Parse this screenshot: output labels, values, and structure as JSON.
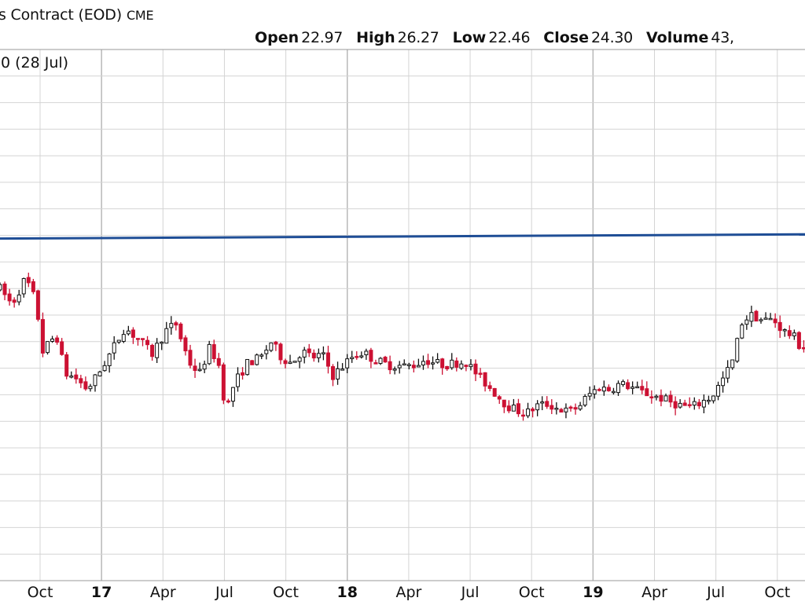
{
  "header": {
    "title": "s Contract (EOD)",
    "exchange": "CME"
  },
  "ohlc": {
    "open_label": "Open",
    "open_value": "22.97",
    "high_label": "High",
    "high_value": "26.27",
    "low_label": "Low",
    "low_value": "22.46",
    "close_label": "Close",
    "close_value": "24.30",
    "volume_label": "Volume",
    "volume_value": "43,"
  },
  "annotation": "0 (28 Jul)",
  "colors": {
    "up": "#111111",
    "down": "#cc1133",
    "ma": "#1f4e96",
    "grid": "#d4d4d4",
    "major_grid": "#b8b8b8",
    "frame": "#9a9a9a"
  },
  "chart_data": {
    "type": "candlestick",
    "x_ticks": [
      {
        "label": "Oct",
        "bold": false
      },
      {
        "label": "17",
        "bold": true
      },
      {
        "label": "Apr",
        "bold": false
      },
      {
        "label": "Jul",
        "bold": false
      },
      {
        "label": "Oct",
        "bold": false
      },
      {
        "label": "18",
        "bold": true
      },
      {
        "label": "Apr",
        "bold": false
      },
      {
        "label": "Jul",
        "bold": false
      },
      {
        "label": "Oct",
        "bold": false
      },
      {
        "label": "19",
        "bold": true
      },
      {
        "label": "Apr",
        "bold": false
      },
      {
        "label": "Jul",
        "bold": false
      },
      {
        "label": "Oct",
        "bold": false
      }
    ],
    "x_range": [
      "2016-08",
      "2019-11"
    ],
    "y_range": [
      0,
      50
    ],
    "y_axis_labels_visible": false,
    "grid": true,
    "moving_average": {
      "start": 32.2,
      "end": 32.6
    },
    "close_path": [
      [
        "2016-08-01",
        27.6
      ],
      [
        "2016-08-20",
        26.0
      ],
      [
        "2016-09-10",
        28.5
      ],
      [
        "2016-09-25",
        26.3
      ],
      [
        "2016-10-05",
        21.6
      ],
      [
        "2016-10-25",
        23.2
      ],
      [
        "2016-11-08",
        19.5
      ],
      [
        "2016-11-25",
        19.0
      ],
      [
        "2016-12-10",
        18.0
      ],
      [
        "2016-12-25",
        19.3
      ],
      [
        "2017-01-15",
        21.5
      ],
      [
        "2017-02-05",
        23.8
      ],
      [
        "2017-02-28",
        22.6
      ],
      [
        "2017-03-15",
        21.3
      ],
      [
        "2017-04-05",
        23.5
      ],
      [
        "2017-04-20",
        24.2
      ],
      [
        "2017-05-10",
        20.5
      ],
      [
        "2017-05-25",
        19.5
      ],
      [
        "2017-06-10",
        22.0
      ],
      [
        "2017-06-25",
        20.0
      ],
      [
        "2017-07-03",
        15.8
      ],
      [
        "2017-07-15",
        18.5
      ],
      [
        "2017-08-05",
        20.5
      ],
      [
        "2017-08-25",
        21.0
      ],
      [
        "2017-09-10",
        22.5
      ],
      [
        "2017-09-25",
        21.0
      ],
      [
        "2017-10-10",
        20.5
      ],
      [
        "2017-10-25",
        21.6
      ],
      [
        "2017-11-10",
        21.0
      ],
      [
        "2017-11-25",
        21.3
      ],
      [
        "2017-12-10",
        19.3
      ],
      [
        "2017-12-25",
        20.2
      ],
      [
        "2018-01-10",
        21.2
      ],
      [
        "2018-01-25",
        21.5
      ],
      [
        "2018-02-10",
        20.8
      ],
      [
        "2018-03-01",
        20.3
      ],
      [
        "2018-03-25",
        20.2
      ],
      [
        "2018-04-10",
        20.3
      ],
      [
        "2018-04-25",
        20.8
      ],
      [
        "2018-05-10",
        20.5
      ],
      [
        "2018-05-25",
        20.3
      ],
      [
        "2018-06-10",
        20.5
      ],
      [
        "2018-06-25",
        20.6
      ],
      [
        "2018-07-10",
        19.5
      ],
      [
        "2018-07-25",
        18.5
      ],
      [
        "2018-08-10",
        17.5
      ],
      [
        "2018-08-25",
        16.5
      ],
      [
        "2018-09-10",
        16.0
      ],
      [
        "2018-09-25",
        15.8
      ],
      [
        "2018-10-10",
        16.5
      ],
      [
        "2018-10-25",
        16.6
      ],
      [
        "2018-11-10",
        16.2
      ],
      [
        "2018-11-25",
        15.9
      ],
      [
        "2018-12-10",
        16.4
      ],
      [
        "2018-12-25",
        17.5
      ],
      [
        "2019-01-10",
        18.2
      ],
      [
        "2019-01-25",
        18.0
      ],
      [
        "2019-02-10",
        18.5
      ],
      [
        "2019-02-25",
        18.3
      ],
      [
        "2019-03-10",
        17.8
      ],
      [
        "2019-03-25",
        17.5
      ],
      [
        "2019-04-10",
        17.2
      ],
      [
        "2019-04-25",
        16.8
      ],
      [
        "2019-05-10",
        16.5
      ],
      [
        "2019-05-25",
        16.3
      ],
      [
        "2019-06-10",
        16.8
      ],
      [
        "2019-06-25",
        17.3
      ],
      [
        "2019-07-10",
        18.8
      ],
      [
        "2019-07-25",
        20.5
      ],
      [
        "2019-08-10",
        24.5
      ],
      [
        "2019-08-25",
        25.0
      ],
      [
        "2019-09-10",
        24.5
      ],
      [
        "2019-09-25",
        24.6
      ],
      [
        "2019-10-10",
        23.5
      ],
      [
        "2019-10-25",
        23.0
      ],
      [
        "2019-11-05",
        22.0
      ]
    ]
  }
}
